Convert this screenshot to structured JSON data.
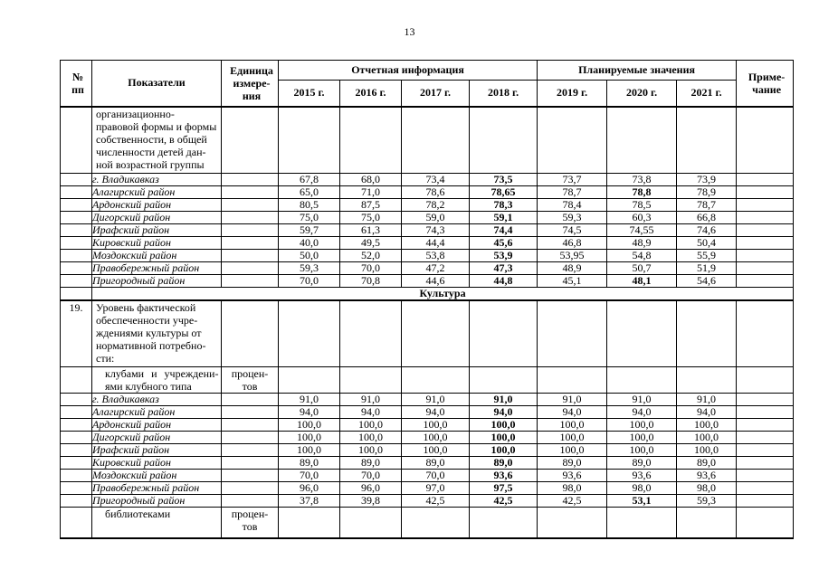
{
  "page_number": "13",
  "table": {
    "header": {
      "num_lines": [
        "№",
        "пп"
      ],
      "indicators": "Показатели",
      "unit_lines": [
        "Единица",
        "измере-",
        "ния"
      ],
      "report_group": "Отчетная информация",
      "plan_group": "Планируемые значения",
      "note_lines": [
        "Приме-",
        "чание"
      ],
      "years": [
        "2015 г.",
        "2016 г.",
        "2017 г.",
        "2018 г.",
        "2019 г.",
        "2020 г.",
        "2021 г."
      ]
    },
    "rows": [
      {
        "type": "wrapped",
        "num": "",
        "lines": [
          "организационно-",
          "правовой формы и формы",
          "собственности, в общей",
          "численности детей дан-",
          "ной возрастной группы"
        ],
        "unit_lines": [],
        "values": [
          "",
          "",
          "",
          "",
          "",
          "",
          ""
        ]
      },
      {
        "type": "district",
        "name": "г. Владикавказ",
        "values": [
          "67,8",
          "68,0",
          "73,4",
          "73,5",
          "73,7",
          "73,8",
          "73,9"
        ],
        "bold_cols": [
          3
        ]
      },
      {
        "type": "district",
        "name": "Алагирский район",
        "values": [
          "65,0",
          "71,0",
          "78,6",
          "78,65",
          "78,7",
          "78,8",
          "78,9"
        ],
        "bold_cols": [
          3,
          5
        ]
      },
      {
        "type": "district",
        "name": "Ардонский район",
        "values": [
          "80,5",
          "87,5",
          "78,2",
          "78,3",
          "78,4",
          "78,5",
          "78,7"
        ],
        "bold_cols": [
          3
        ]
      },
      {
        "type": "district",
        "name": "Дигорский район",
        "values": [
          "75,0",
          "75,0",
          "59,0",
          "59,1",
          "59,3",
          "60,3",
          "66,8"
        ],
        "bold_cols": [
          3
        ]
      },
      {
        "type": "district",
        "name": "Ирафский район",
        "values": [
          "59,7",
          "61,3",
          "74,3",
          "74,4",
          "74,5",
          "74,55",
          "74,6"
        ],
        "bold_cols": [
          3
        ]
      },
      {
        "type": "district",
        "name": "Кировский район",
        "values": [
          "40,0",
          "49,5",
          "44,4",
          "45,6",
          "46,8",
          "48,9",
          "50,4"
        ],
        "bold_cols": [
          3
        ]
      },
      {
        "type": "district",
        "name": "Моздокский район",
        "values": [
          "50,0",
          "52,0",
          "53,8",
          "53,9",
          "53,95",
          "54,8",
          "55,9"
        ],
        "bold_cols": [
          3
        ]
      },
      {
        "type": "district",
        "name": "Правобережный район",
        "values": [
          "59,3",
          "70,0",
          "47,2",
          "47,3",
          "48,9",
          "50,7",
          "51,9"
        ],
        "bold_cols": [
          3
        ]
      },
      {
        "type": "district",
        "name": "Пригородный район",
        "values": [
          "70,0",
          "70,8",
          "44,6",
          "44,8",
          "45,1",
          "48,1",
          "54,6"
        ],
        "bold_cols": [
          3,
          5
        ]
      },
      {
        "type": "section",
        "title": "Культура"
      },
      {
        "type": "wrapped",
        "num": "19.",
        "lines": [
          "Уровень фактической",
          "обеспеченности учре-",
          "ждениями культуры от",
          "нормативной потребно-",
          "сти:"
        ],
        "unit_lines": [],
        "values": [
          "",
          "",
          "",
          "",
          "",
          "",
          ""
        ]
      },
      {
        "type": "sub",
        "lines": [
          "клубами и учреждени-",
          "ями клубного типа"
        ],
        "unit_lines": [
          "процен-",
          "тов"
        ],
        "values": [
          "",
          "",
          "",
          "",
          "",
          "",
          ""
        ]
      },
      {
        "type": "district",
        "name": "г. Владикавказ",
        "values": [
          "91,0",
          "91,0",
          "91,0",
          "91,0",
          "91,0",
          "91,0",
          "91,0"
        ],
        "bold_cols": [
          3
        ]
      },
      {
        "type": "district",
        "name": "Алагирский район",
        "values": [
          "94,0",
          "94,0",
          "94,0",
          "94,0",
          "94,0",
          "94,0",
          "94,0"
        ],
        "bold_cols": [
          3
        ]
      },
      {
        "type": "district",
        "name": "Ардонский район",
        "values": [
          "100,0",
          "100,0",
          "100,0",
          "100,0",
          "100,0",
          "100,0",
          "100,0"
        ],
        "bold_cols": [
          3
        ]
      },
      {
        "type": "district",
        "name": "Дигорский район",
        "values": [
          "100,0",
          "100,0",
          "100,0",
          "100,0",
          "100,0",
          "100,0",
          "100,0"
        ],
        "bold_cols": [
          3
        ]
      },
      {
        "type": "district",
        "name": "Ирафский район",
        "values": [
          "100,0",
          "100,0",
          "100,0",
          "100,0",
          "100,0",
          "100,0",
          "100,0"
        ],
        "bold_cols": [
          3
        ]
      },
      {
        "type": "district",
        "name": "Кировский район",
        "values": [
          "89,0",
          "89,0",
          "89,0",
          "89,0",
          "89,0",
          "89,0",
          "89,0"
        ],
        "bold_cols": [
          3
        ]
      },
      {
        "type": "district",
        "name": "Моздокский район",
        "values": [
          "70,0",
          "70,0",
          "70,0",
          "93,6",
          "93,6",
          "93,6",
          "93,6"
        ],
        "bold_cols": [
          3
        ]
      },
      {
        "type": "district",
        "name": "Правобережный район",
        "values": [
          "96,0",
          "96,0",
          "97,0",
          "97,5",
          "98,0",
          "98,0",
          "98,0"
        ],
        "bold_cols": [
          3
        ]
      },
      {
        "type": "district",
        "name": "Пригородный район",
        "values": [
          "37,8",
          "39,8",
          "42,5",
          "42,5",
          "42,5",
          "53,1",
          "59,3"
        ],
        "bold_cols": [
          3,
          5
        ]
      },
      {
        "type": "sub",
        "lines": [
          "библиотеками"
        ],
        "unit_lines": [
          "процен-",
          "тов"
        ],
        "values": [
          "",
          "",
          "",
          "",
          "",
          "",
          ""
        ]
      }
    ]
  }
}
